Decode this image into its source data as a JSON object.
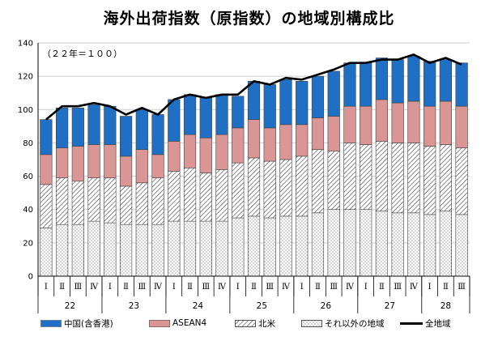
{
  "title": "海外出荷指数（原指数）の地域別構成比",
  "chart_data": {
    "type": "bar",
    "stacked": true,
    "unit_note": "（２２年＝１００）",
    "ylim": [
      0,
      140
    ],
    "y_ticks": [
      "0",
      "20",
      "40",
      "60",
      "80",
      "100",
      "120",
      "140"
    ],
    "categories": [
      "Ⅰ",
      "Ⅱ",
      "Ⅲ",
      "Ⅳ",
      "Ⅰ",
      "Ⅱ",
      "Ⅲ",
      "Ⅳ",
      "Ⅰ",
      "Ⅱ",
      "Ⅲ",
      "Ⅳ",
      "Ⅰ",
      "Ⅱ",
      "Ⅲ",
      "Ⅳ",
      "Ⅰ",
      "Ⅱ",
      "Ⅲ",
      "Ⅳ",
      "Ⅰ",
      "Ⅱ",
      "Ⅲ",
      "Ⅳ",
      "Ⅰ",
      "Ⅱ",
      "Ⅲ"
    ],
    "year_groups": [
      {
        "label": "22",
        "count": 4
      },
      {
        "label": "23",
        "count": 4
      },
      {
        "label": "24",
        "count": 4
      },
      {
        "label": "25",
        "count": 4
      },
      {
        "label": "26",
        "count": 4
      },
      {
        "label": "27",
        "count": 4
      },
      {
        "label": "28",
        "count": 3
      }
    ],
    "series": [
      {
        "name": "それ以外の地域",
        "pattern": "dots",
        "color": "#ffffff",
        "values": [
          29,
          31,
          31,
          33,
          32,
          31,
          31,
          31,
          33,
          33,
          33,
          33,
          35,
          36,
          35,
          36,
          36,
          38,
          40,
          40,
          40,
          39,
          38,
          38,
          37,
          39,
          37
        ]
      },
      {
        "name": "北米",
        "pattern": "hatch",
        "color": "#ffffff",
        "values": [
          26,
          28,
          26,
          26,
          27,
          23,
          25,
          28,
          30,
          32,
          29,
          31,
          33,
          35,
          34,
          34,
          36,
          38,
          35,
          40,
          39,
          42,
          42,
          42,
          41,
          40,
          40
        ]
      },
      {
        "name": "ASEAN4",
        "color": "#d99694",
        "values": [
          18,
          18,
          21,
          20,
          20,
          18,
          20,
          14,
          18,
          20,
          21,
          21,
          21,
          23,
          20,
          21,
          19,
          19,
          21,
          22,
          23,
          25,
          24,
          25,
          24,
          26,
          25
        ]
      },
      {
        "name": "中国(含香港)",
        "color": "#1f6fc5",
        "values": [
          21,
          24,
          23,
          24,
          23,
          24,
          24,
          24,
          25,
          24,
          24,
          24,
          19,
          23,
          26,
          27,
          26,
          25,
          27,
          26,
          26,
          25,
          26,
          27,
          27,
          25,
          26
        ]
      }
    ],
    "total_line": {
      "name": "全地域",
      "color": "#000000",
      "values": [
        94,
        102,
        102,
        104,
        102,
        97,
        101,
        97,
        106,
        109,
        107,
        109,
        109,
        117,
        115,
        119,
        118,
        121,
        124,
        128,
        128,
        130,
        130,
        133,
        128,
        131,
        127
      ]
    }
  }
}
